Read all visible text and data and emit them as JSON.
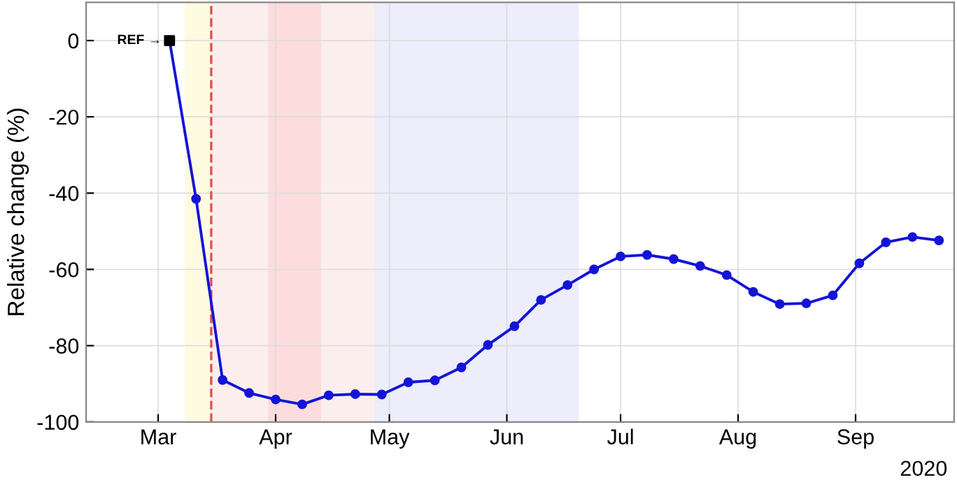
{
  "chart_data": {
    "type": "line",
    "ylabel": "Relative change (%)",
    "x": [
      "2020-03-04",
      "2020-03-11",
      "2020-03-18",
      "2020-03-25",
      "2020-04-01",
      "2020-04-08",
      "2020-04-15",
      "2020-04-22",
      "2020-04-29",
      "2020-05-06",
      "2020-05-13",
      "2020-05-20",
      "2020-05-27",
      "2020-06-03",
      "2020-06-10",
      "2020-06-17",
      "2020-06-24",
      "2020-07-01",
      "2020-07-08",
      "2020-07-15",
      "2020-07-22",
      "2020-07-29",
      "2020-08-05",
      "2020-08-12",
      "2020-08-19",
      "2020-08-26",
      "2020-09-02",
      "2020-09-09",
      "2020-09-16",
      "2020-09-23"
    ],
    "series": [
      {
        "color": "#1414d8",
        "marker": "circle",
        "values": [
          0,
          -41.5,
          -89,
          -92.4,
          -94.1,
          -95.4,
          -93,
          -92.7,
          -92.8,
          -89.6,
          -89.1,
          -85.7,
          -79.8,
          -74.9,
          -68,
          -64.1,
          -60,
          -56.6,
          -56.2,
          -57.3,
          -59.1,
          -61.5,
          -65.9,
          -69.1,
          -68.9,
          -66.8,
          -58.4,
          -52.9,
          -51.5,
          -52.4
        ]
      },
      {
        "type": "scatter",
        "color": "#000000",
        "marker": "square",
        "x": [
          "2020-03-04"
        ],
        "values": [
          0
        ]
      }
    ],
    "xlim": [
      "2020-02-11",
      "2020-09-27"
    ],
    "xticks": [
      {
        "value": "2020-03-01",
        "label": "Mar"
      },
      {
        "value": "2020-04-01",
        "label": "Apr"
      },
      {
        "value": "2020-05-01",
        "label": "May"
      },
      {
        "value": "2020-06-01",
        "label": "Jun"
      },
      {
        "value": "2020-07-01",
        "label": "Jul"
      },
      {
        "value": "2020-08-01",
        "label": "Aug"
      },
      {
        "value": "2020-09-01",
        "label": "Sep"
      }
    ],
    "ylim": [
      -100,
      10
    ],
    "yticks": [
      0,
      -20,
      -40,
      -60,
      -80,
      -100
    ],
    "ref_lines": [
      {
        "axis": "x",
        "value": "2020-03-15",
        "color": "#e05050",
        "line_style": "dashed"
      }
    ],
    "bands": [
      {
        "axis": "x",
        "from": "2020-03-08",
        "to": "2020-03-15",
        "color": "#fdfbe0"
      },
      {
        "axis": "x",
        "from": "2020-03-15",
        "to": "2020-03-30",
        "color": "#fdeeee"
      },
      {
        "axis": "x",
        "from": "2020-03-30",
        "to": "2020-04-13",
        "color": "#fcdcdc"
      },
      {
        "axis": "x",
        "from": "2020-04-13",
        "to": "2020-04-27",
        "color": "#fdeeee"
      },
      {
        "axis": "x",
        "from": "2020-04-27",
        "to": "2020-06-20",
        "color": "#ededfb"
      }
    ],
    "annotations": [
      {
        "text": "REF →",
        "x": "2020-03-04",
        "y": 0
      },
      "2020"
    ],
    "grid": true,
    "legend": false
  }
}
